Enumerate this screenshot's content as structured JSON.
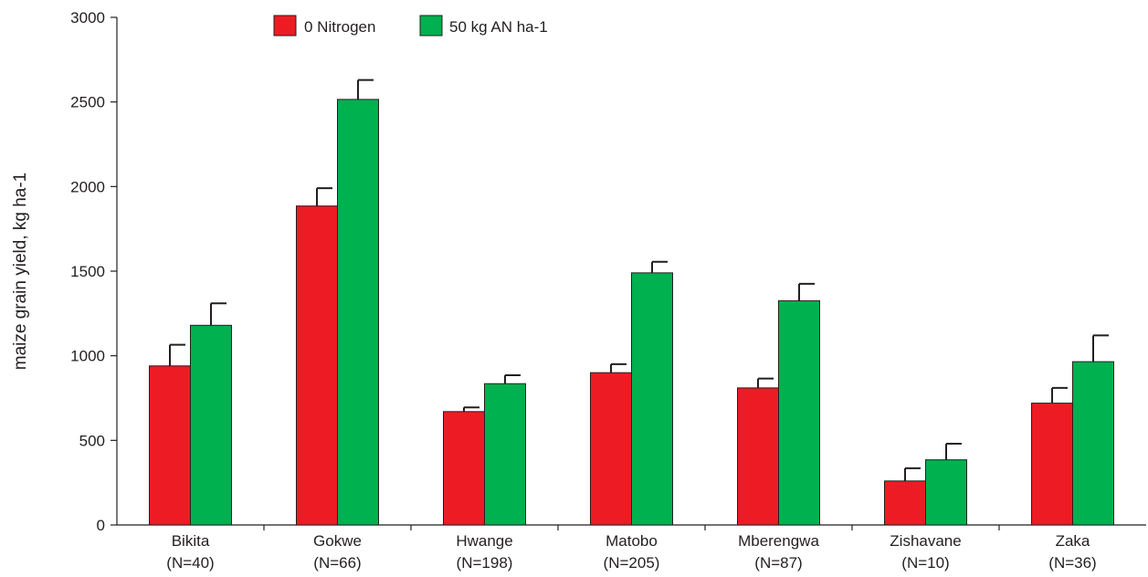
{
  "chart_data": {
    "type": "bar",
    "title": "",
    "ylabel": "maize grain yield, kg ha-1",
    "xlabel": "",
    "ylim": [
      0,
      3000
    ],
    "yticks": [
      0,
      500,
      1000,
      1500,
      2000,
      2500,
      3000
    ],
    "grid": false,
    "legend_position": "top-center",
    "categories": [
      {
        "name": "Bikita",
        "n": "(N=40)"
      },
      {
        "name": "Gokwe",
        "n": "(N=66)"
      },
      {
        "name": "Hwange",
        "n": "(N=198)"
      },
      {
        "name": "Matobo",
        "n": "(N=205)"
      },
      {
        "name": "Mberengwa",
        "n": "(N=87)"
      },
      {
        "name": "Zishavane",
        "n": "(N=10)"
      },
      {
        "name": "Zaka",
        "n": "(N=36)"
      }
    ],
    "series": [
      {
        "name": "0 Nitrogen",
        "color": "#ed1c24",
        "values": [
          940,
          1885,
          670,
          900,
          810,
          260,
          720
        ],
        "errors": [
          125,
          105,
          25,
          50,
          55,
          75,
          90
        ]
      },
      {
        "name": "50 kg AN ha-1",
        "color": "#00b14f",
        "values": [
          1180,
          2515,
          835,
          1490,
          1325,
          385,
          965
        ],
        "errors": [
          130,
          115,
          50,
          65,
          100,
          95,
          155
        ]
      }
    ]
  }
}
